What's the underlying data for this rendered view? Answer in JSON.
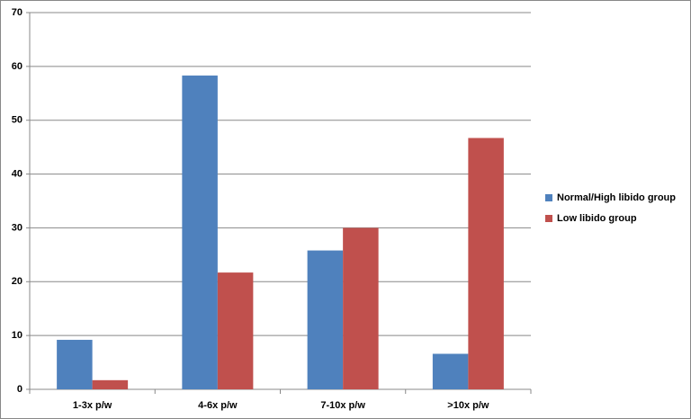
{
  "chart_data": {
    "type": "bar",
    "categories": [
      "1-3x p/w",
      "4-6x p/w",
      "7-10x p/w",
      ">10x p/w"
    ],
    "series": [
      {
        "name": "Normal/High libido group",
        "color": "#4f81bd",
        "values": [
          9.2,
          58.3,
          25.8,
          6.6
        ]
      },
      {
        "name": "Low libido group",
        "color": "#c0504d",
        "values": [
          1.7,
          21.7,
          30,
          46.7
        ]
      }
    ],
    "ylim": [
      0,
      70
    ],
    "yticks": [
      0,
      10,
      20,
      30,
      40,
      50,
      60,
      70
    ],
    "grid": true,
    "legend": "right"
  }
}
